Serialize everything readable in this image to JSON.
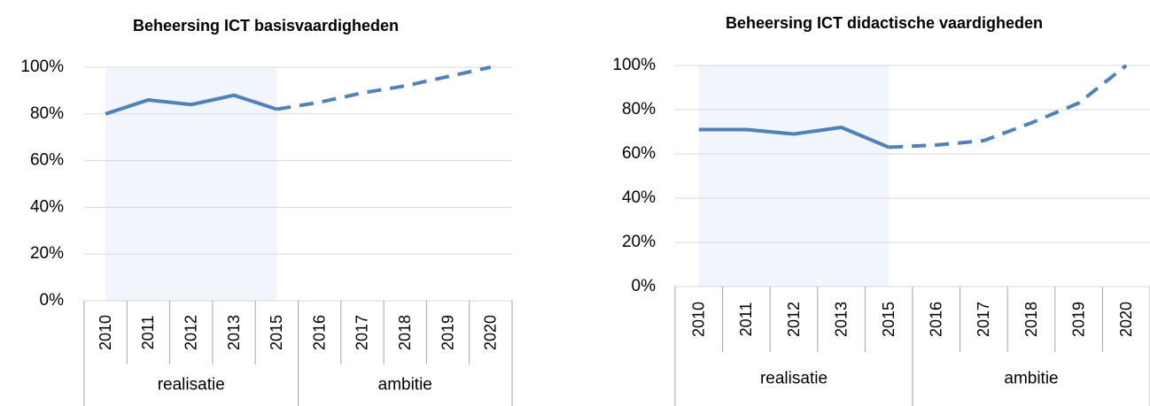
{
  "chart_data": [
    {
      "type": "line",
      "title": "Beheersing ICT basisvaardigheden",
      "categories": [
        "2010",
        "2011",
        "2012",
        "2013",
        "2015",
        "2016",
        "2017",
        "2018",
        "2019",
        "2020"
      ],
      "series": [
        {
          "name": "realisatie",
          "color": "#4f81bd",
          "style": "solid",
          "values": [
            80,
            86,
            84,
            88,
            82,
            null,
            null,
            null,
            null,
            null
          ]
        },
        {
          "name": "ambitie",
          "color": "#4f81bd",
          "style": "dashed",
          "values": [
            null,
            null,
            null,
            null,
            82,
            85,
            89,
            92,
            96,
            100
          ]
        }
      ],
      "ylim": [
        0,
        100
      ],
      "yticks": [
        {
          "value": 0,
          "label": "0%"
        },
        {
          "value": 20,
          "label": "20%"
        },
        {
          "value": 40,
          "label": "40%"
        },
        {
          "value": 60,
          "label": "60%"
        },
        {
          "value": 80,
          "label": "80%"
        },
        {
          "value": 100,
          "label": "100%"
        }
      ],
      "grid": true
    },
    {
      "type": "line",
      "title": "Beheersing ICT didactische vaardigheden",
      "categories": [
        "2010",
        "2011",
        "2012",
        "2013",
        "2015",
        "2016",
        "2017",
        "2018",
        "2019",
        "2020"
      ],
      "series": [
        {
          "name": "realisatie",
          "color": "#4f81bd",
          "style": "solid",
          "values": [
            71,
            71,
            69,
            72,
            63,
            null,
            null,
            null,
            null,
            null
          ]
        },
        {
          "name": "ambitie",
          "color": "#4f81bd",
          "style": "dashed",
          "values": [
            null,
            null,
            null,
            null,
            63,
            64,
            66,
            74,
            83,
            100
          ]
        }
      ],
      "ylim": [
        0,
        100
      ],
      "yticks": [
        {
          "value": 0,
          "label": "0%"
        },
        {
          "value": 20,
          "label": "20%"
        },
        {
          "value": 40,
          "label": "40%"
        },
        {
          "value": 60,
          "label": "60%"
        },
        {
          "value": 80,
          "label": "80%"
        },
        {
          "value": 100,
          "label": "100%"
        }
      ],
      "grid": true
    }
  ]
}
